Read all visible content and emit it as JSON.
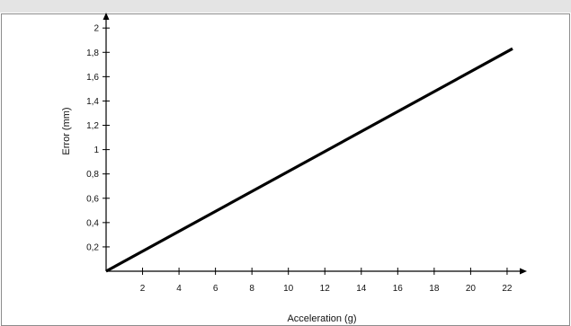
{
  "chart_data": {
    "type": "line",
    "title": "",
    "xlabel": "Acceleration (g)",
    "ylabel": "Error (mm)",
    "xlim": [
      0,
      23.5
    ],
    "ylim": [
      0,
      2.2
    ],
    "x_ticks": [
      2,
      4,
      6,
      8,
      10,
      12,
      14,
      16,
      18,
      20,
      22
    ],
    "x_tick_labels": [
      "2",
      "4",
      "6",
      "8",
      "10",
      "12",
      "14",
      "16",
      "18",
      "20",
      "22"
    ],
    "y_ticks": [
      0.2,
      0.4,
      0.6,
      0.8,
      1.0,
      1.2,
      1.4,
      1.6,
      1.8,
      2.0
    ],
    "y_tick_labels": [
      "0,2",
      "0,4",
      "0,6",
      "0,8",
      "1",
      "1,2",
      "1,4",
      "1,6",
      "1,8",
      "2"
    ],
    "grid": false,
    "series": [
      {
        "x": [
          0,
          22.3
        ],
        "y": [
          0,
          1.83
        ],
        "color": "#000000"
      }
    ]
  }
}
